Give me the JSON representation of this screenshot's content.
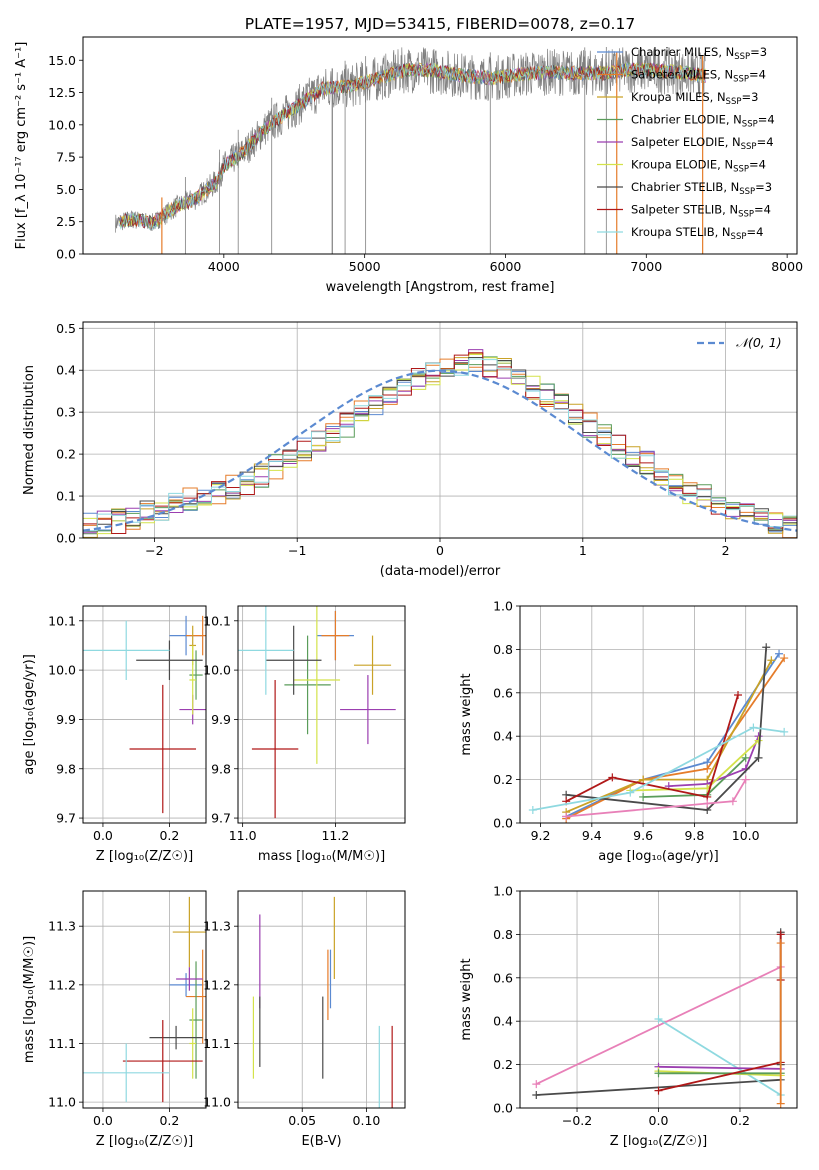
{
  "figure_title": "PLATE=1957, MJD=53415, FIBERID=0078, z=0.17",
  "legend": {
    "entries": [
      {
        "label": "Chabrier MILES, N",
        "sub": "SSP",
        "tail": "=3",
        "color": "#5b8ad1"
      },
      {
        "label": "Salpeter MILES, N",
        "sub": "SSP",
        "tail": "=4",
        "color": "#e57c2a"
      },
      {
        "label": "Kroupa MILES, N",
        "sub": "SSP",
        "tail": "=3",
        "color": "#c9a227"
      },
      {
        "label": "Chabrier ELODIE, N",
        "sub": "SSP",
        "tail": "=4",
        "color": "#5a9c5a"
      },
      {
        "label": "Salpeter ELODIE, N",
        "sub": "SSP",
        "tail": "=4",
        "color": "#9b3fb0"
      },
      {
        "label": "Kroupa ELODIE, N",
        "sub": "SSP",
        "tail": "=4",
        "color": "#d4e24a"
      },
      {
        "label": "Chabrier STELIB, N",
        "sub": "SSP",
        "tail": "=3",
        "color": "#4a4a4a"
      },
      {
        "label": "Salpeter STELIB, N",
        "sub": "SSP",
        "tail": "=4",
        "color": "#b01818"
      },
      {
        "label": "Kroupa STELIB, N",
        "sub": "SSP",
        "tail": "=4",
        "color": "#8fd9e0"
      }
    ],
    "normal_label": "𝒩(0, 1)",
    "normal_color": "#5b8ad1"
  },
  "chart_data": [
    {
      "id": "spectrum",
      "type": "line",
      "xlabel": "wavelength [Angstrom, rest frame]",
      "ylabel": "Flux [f_λ 10⁻¹⁷ erg cm⁻² s⁻¹ A⁻¹]",
      "xlim": [
        3000,
        8070
      ],
      "ylim": [
        0,
        16.8
      ],
      "xticks": [
        4000,
        5000,
        6000,
        7000,
        8000
      ],
      "yticks": [
        0.0,
        2.5,
        5.0,
        7.5,
        10.0,
        12.5,
        15.0
      ],
      "grid": false,
      "continuum": {
        "x": [
          3230,
          3350,
          3500,
          3650,
          3800,
          3950,
          4000,
          4150,
          4300,
          4500,
          4700,
          4900,
          5100,
          5300,
          5500,
          5700,
          5900,
          6100,
          6300,
          6500,
          6700,
          6900,
          7100,
          7300,
          7420
        ],
        "y": [
          2.4,
          2.7,
          2.4,
          3.6,
          4.3,
          5.6,
          6.8,
          8.0,
          9.8,
          11.3,
          12.8,
          13.0,
          13.6,
          14.3,
          14.2,
          13.8,
          13.6,
          13.9,
          14.1,
          14.0,
          14.0,
          14.3,
          14.2,
          14.0,
          13.8
        ]
      },
      "emission_lines": [
        3727,
        3970,
        4102,
        4340,
        4861,
        5007,
        5892,
        6563,
        6716
      ]
    },
    {
      "id": "residuals",
      "type": "histogram",
      "xlabel": "(data-model)/error",
      "ylabel": "Normed distribution",
      "xlim": [
        -2.5,
        2.5
      ],
      "ylim": [
        0,
        0.515
      ],
      "xticks": [
        -2,
        -1,
        0,
        1,
        2
      ],
      "yticks": [
        0.0,
        0.1,
        0.2,
        0.3,
        0.4,
        0.5
      ],
      "grid": true,
      "bin_width": 0.1,
      "bin_start": -2.5,
      "base_density": [
        0.03,
        0.035,
        0.04,
        0.05,
        0.06,
        0.07,
        0.08,
        0.09,
        0.1,
        0.11,
        0.12,
        0.13,
        0.15,
        0.17,
        0.19,
        0.21,
        0.23,
        0.25,
        0.27,
        0.3,
        0.32,
        0.34,
        0.36,
        0.38,
        0.39,
        0.4,
        0.41,
        0.42,
        0.41,
        0.4,
        0.38,
        0.36,
        0.34,
        0.32,
        0.3,
        0.27,
        0.25,
        0.22,
        0.2,
        0.18,
        0.15,
        0.13,
        0.11,
        0.1,
        0.08,
        0.07,
        0.06,
        0.05,
        0.04,
        0.03
      ]
    },
    {
      "id": "age_vs_Z",
      "type": "scatter",
      "xlabel": "Z [log₁₀(Z/Z☉)]",
      "ylabel": "age  [log₁₀(age/yr)]",
      "xlim": [
        -0.06,
        0.31
      ],
      "ylim": [
        9.69,
        10.13
      ],
      "xticks": [
        0.0,
        0.2
      ],
      "yticks": [
        9.7,
        9.8,
        9.9,
        10.0,
        10.1
      ],
      "grid": true,
      "points": [
        {
          "x": 0.25,
          "y": 10.07,
          "xerr": 0.05,
          "yerr": 0.04,
          "series": 0
        },
        {
          "x": 0.3,
          "y": 10.07,
          "xerr": 0.05,
          "yerr": 0.04,
          "series": 1
        },
        {
          "x": 0.27,
          "y": 10.05,
          "xerr": 0.01,
          "yerr": 0.04,
          "series": 2
        },
        {
          "x": 0.28,
          "y": 9.99,
          "xerr": 0.02,
          "yerr": 0.05,
          "series": 3
        },
        {
          "x": 0.27,
          "y": 9.92,
          "xerr": 0.04,
          "yerr": 0.03,
          "series": 4
        },
        {
          "x": 0.27,
          "y": 9.98,
          "xerr": 0.01,
          "yerr": 0.07,
          "series": 5
        },
        {
          "x": 0.2,
          "y": 10.02,
          "xerr": 0.1,
          "yerr": 0.04,
          "series": 6
        },
        {
          "x": 0.18,
          "y": 9.84,
          "xerr": 0.1,
          "yerr": 0.13,
          "series": 7
        },
        {
          "x": 0.07,
          "y": 10.04,
          "xerr": 0.13,
          "yerr": 0.06,
          "series": 8
        }
      ]
    },
    {
      "id": "age_vs_mass",
      "type": "scatter",
      "xlabel": "mass [log₁₀(M/M☉)]",
      "ylabel": "",
      "xlim": [
        10.99,
        11.35
      ],
      "ylim": [
        9.69,
        10.13
      ],
      "xticks": [
        11.0,
        11.2
      ],
      "yticks": [
        9.7,
        9.8,
        9.9,
        10.0,
        10.1
      ],
      "grid": true,
      "points": [
        {
          "x": 11.2,
          "y": 10.07,
          "xerr": 0.04,
          "yerr": 0.05,
          "series": 0
        },
        {
          "x": 11.2,
          "y": 10.07,
          "xerr": 0.03,
          "yerr": 0.05,
          "series": 1
        },
        {
          "x": 11.28,
          "y": 10.01,
          "xerr": 0.04,
          "yerr": 0.06,
          "series": 2
        },
        {
          "x": 11.14,
          "y": 9.97,
          "xerr": 0.05,
          "yerr": 0.1,
          "series": 3
        },
        {
          "x": 11.27,
          "y": 9.92,
          "xerr": 0.06,
          "yerr": 0.07,
          "series": 4
        },
        {
          "x": 11.16,
          "y": 9.98,
          "xerr": 0.05,
          "yerr": 0.17,
          "series": 5
        },
        {
          "x": 11.11,
          "y": 10.02,
          "xerr": 0.06,
          "yerr": 0.07,
          "series": 6
        },
        {
          "x": 11.07,
          "y": 9.84,
          "xerr": 0.05,
          "yerr": 0.14,
          "series": 7
        },
        {
          "x": 11.05,
          "y": 10.04,
          "xerr": 0.06,
          "yerr": 0.09,
          "series": 8
        }
      ]
    },
    {
      "id": "weight_vs_age",
      "type": "line",
      "xlabel": "age  [log₁₀(age/yr)]",
      "ylabel": "mass weight",
      "xlim": [
        9.12,
        10.2
      ],
      "ylim": [
        0,
        1.0
      ],
      "xticks": [
        9.2,
        9.4,
        9.6,
        9.8,
        10.0
      ],
      "yticks": [
        0.0,
        0.2,
        0.4,
        0.6,
        0.8,
        1.0
      ],
      "grid": true,
      "series": [
        {
          "x": [
            9.3,
            9.6,
            9.85,
            10.13
          ],
          "y": [
            0.03,
            0.2,
            0.28,
            0.78
          ]
        },
        {
          "x": [
            9.3,
            9.6,
            9.85,
            10.15
          ],
          "y": [
            0.02,
            0.2,
            0.25,
            0.76
          ]
        },
        {
          "x": [
            9.3,
            9.6,
            9.85,
            10.1
          ],
          "y": [
            0.05,
            0.2,
            0.2,
            0.75
          ]
        },
        {
          "x": [
            9.6,
            9.85,
            10.0
          ],
          "y": [
            0.12,
            0.13,
            0.3
          ]
        },
        {
          "x": [
            9.7,
            9.85,
            10.0,
            10.05
          ],
          "y": [
            0.17,
            0.18,
            0.25,
            0.4
          ]
        },
        {
          "x": [
            9.55,
            9.85,
            10.05
          ],
          "y": [
            0.15,
            0.16,
            0.38
          ]
        },
        {
          "x": [
            9.3,
            9.85,
            10.05,
            10.08
          ],
          "y": [
            0.13,
            0.06,
            0.3,
            0.81
          ]
        },
        {
          "x": [
            9.3,
            9.48,
            9.85,
            9.97
          ],
          "y": [
            0.1,
            0.21,
            0.12,
            0.59
          ]
        },
        {
          "x": [
            9.17,
            9.55,
            10.03,
            10.15
          ],
          "y": [
            0.06,
            0.14,
            0.44,
            0.42
          ]
        },
        {
          "x": [
            9.3,
            9.85,
            9.95,
            10.0
          ],
          "y": [
            0.03,
            0.09,
            0.1,
            0.2
          ]
        }
      ]
    },
    {
      "id": "mass_vs_Z",
      "type": "scatter",
      "xlabel": "Z [log₁₀(Z/Z☉)]",
      "ylabel": "mass [log₁₀(M/M☉)]",
      "xlim": [
        -0.06,
        0.31
      ],
      "ylim": [
        10.99,
        11.36
      ],
      "xticks": [
        0.0,
        0.2
      ],
      "yticks": [
        11.0,
        11.1,
        11.2,
        11.3
      ],
      "grid": true,
      "points": [
        {
          "x": 0.25,
          "y": 11.2,
          "xerr": 0.05,
          "yerr": 0.02,
          "series": 0
        },
        {
          "x": 0.3,
          "y": 11.18,
          "xerr": 0.05,
          "yerr": 0.08,
          "series": 1
        },
        {
          "x": 0.26,
          "y": 11.29,
          "xerr": 0.05,
          "yerr": 0.06,
          "series": 2
        },
        {
          "x": 0.28,
          "y": 11.14,
          "xerr": 0.02,
          "yerr": 0.1,
          "series": 3
        },
        {
          "x": 0.26,
          "y": 11.21,
          "xerr": 0.04,
          "yerr": 0.02,
          "series": 4
        },
        {
          "x": 0.27,
          "y": 11.1,
          "xerr": 0.01,
          "yerr": 0.06,
          "series": 5
        },
        {
          "x": 0.22,
          "y": 11.11,
          "xerr": 0.08,
          "yerr": 0.02,
          "series": 6
        },
        {
          "x": 0.18,
          "y": 11.07,
          "xerr": 0.12,
          "yerr": 0.07,
          "series": 7
        },
        {
          "x": 0.07,
          "y": 11.05,
          "xerr": 0.13,
          "yerr": 0.05,
          "series": 8
        }
      ]
    },
    {
      "id": "mass_vs_ebv",
      "type": "scatter",
      "xlabel": "E(B-V)",
      "ylabel": "",
      "xlim": [
        0.0,
        0.13
      ],
      "ylim": [
        10.99,
        11.36
      ],
      "xticks": [
        0.05,
        0.1
      ],
      "yticks": [
        11.0,
        11.1,
        11.2,
        11.3
      ],
      "grid": true,
      "points": [
        {
          "x": 0.075,
          "y": 11.28,
          "yerr": 0.07,
          "series": 2
        },
        {
          "x": 0.07,
          "y": 11.2,
          "yerr": 0.06,
          "series": 1
        },
        {
          "x": 0.072,
          "y": 11.21,
          "yerr": 0.05,
          "series": 0
        },
        {
          "x": 0.017,
          "y": 11.24,
          "yerr": 0.08,
          "series": 4
        },
        {
          "x": 0.017,
          "y": 11.12,
          "yerr": 0.06,
          "series": 6
        },
        {
          "x": 0.012,
          "y": 11.11,
          "yerr": 0.07,
          "series": 5
        },
        {
          "x": 0.066,
          "y": 11.11,
          "yerr": 0.07,
          "series": 6
        },
        {
          "x": 0.11,
          "y": 11.06,
          "yerr": 0.07,
          "series": 8
        },
        {
          "x": 0.12,
          "y": 11.06,
          "yerr": 0.07,
          "series": 7
        }
      ]
    },
    {
      "id": "weight_vs_Z",
      "type": "line",
      "xlabel": "Z [log₁₀(Z/Z☉)]",
      "ylabel": "mass weight",
      "xlim": [
        -0.34,
        0.34
      ],
      "ylim": [
        0,
        1.0
      ],
      "xticks": [
        -0.2,
        0.0,
        0.2
      ],
      "yticks": [
        0.0,
        0.2,
        0.4,
        0.6,
        0.8,
        1.0
      ],
      "grid": true,
      "series": [
        {
          "x": [
            -0.3,
            0.3
          ],
          "y": [
            0.11,
            0.65
          ],
          "color": "#e880b8"
        },
        {
          "x": [
            -0.3,
            0.3
          ],
          "y": [
            0.06,
            0.13
          ],
          "color": "#4a4a4a"
        },
        {
          "x": [
            0.0,
            0.3
          ],
          "y": [
            0.41,
            0.06
          ],
          "color": "#8fd9e0"
        },
        {
          "x": [
            0.0,
            0.3
          ],
          "y": [
            0.19,
            0.18
          ],
          "color": "#9b3fb0"
        },
        {
          "x": [
            0.0,
            0.3
          ],
          "y": [
            0.17,
            0.15
          ],
          "color": "#d4e24a"
        },
        {
          "x": [
            0.0,
            0.3
          ],
          "y": [
            0.16,
            0.16
          ],
          "color": "#5a9c5a"
        },
        {
          "x": [
            0.0,
            0.3
          ],
          "y": [
            0.08,
            0.21
          ],
          "color": "#b01818"
        },
        {
          "x": [
            0.3,
            0.3
          ],
          "y": [
            0.2,
            0.81
          ],
          "color": "#4a4a4a"
        },
        {
          "x": [
            0.3,
            0.3
          ],
          "y": [
            0.59,
            0.8
          ],
          "color": "#b01818"
        },
        {
          "x": [
            0.3,
            0.3
          ],
          "y": [
            0.02,
            0.76
          ],
          "color": "#e57c2a"
        }
      ]
    }
  ]
}
